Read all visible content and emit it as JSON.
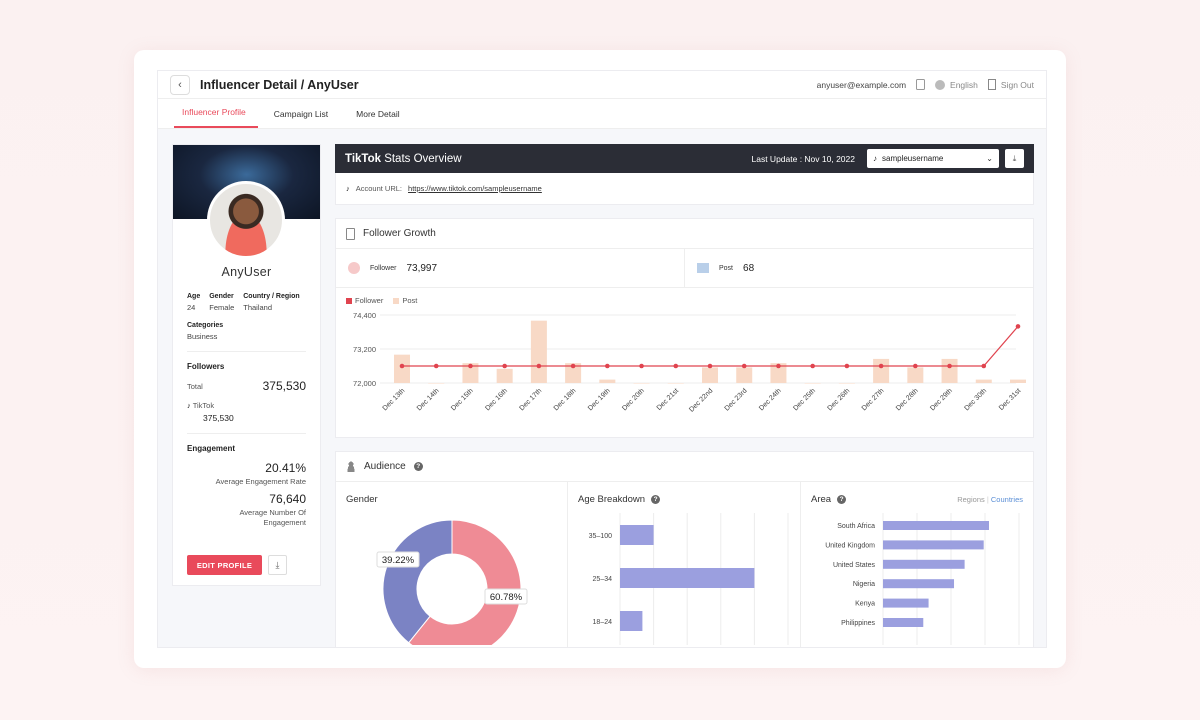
{
  "header": {
    "back_icon": "chevron-left-icon",
    "title": "Influencer Detail / AnyUser",
    "email": "anyuser@example.com",
    "language": "English",
    "sign_out": "Sign Out"
  },
  "tabs": [
    {
      "label": "Influencer Profile",
      "active": true
    },
    {
      "label": "Campaign List",
      "active": false
    },
    {
      "label": "More Detail",
      "active": false
    }
  ],
  "profile": {
    "name": "AnyUser",
    "age_label": "Age",
    "age": "24",
    "gender_label": "Gender",
    "gender": "Female",
    "country_label": "Country / Region",
    "country": "Thailand",
    "categories_label": "Categories",
    "categories": "Business",
    "followers_label": "Followers",
    "total_label": "Total",
    "total": "375,530",
    "tiktok_label": "TikTok",
    "tiktok_followers": "375,530",
    "engagement_label": "Engagement",
    "eng_rate": "20.41%",
    "eng_rate_label": "Average Engagement Rate",
    "eng_count": "76,640",
    "eng_count_label": "Average Number Of Engagement",
    "edit_button": "EDIT PROFILE"
  },
  "stats": {
    "brand": "TikTok",
    "title_rest": " Stats Overview",
    "last_update": "Last Update : Nov 10, 2022",
    "account": "sampleusername",
    "url_label": "Account URL:",
    "url": "https://www.tiktok.com/sampleusername"
  },
  "follower_growth": {
    "title": "Follower Growth",
    "follower_label": "Follower",
    "follower_value": "73,997",
    "post_label": "Post",
    "post_value": "68",
    "legend_follower": "Follower",
    "legend_post": "Post"
  },
  "audience": {
    "title": "Audience",
    "gender_title": "Gender",
    "age_title": "Age Breakdown",
    "area_title": "Area",
    "regions": "Regions",
    "countries": "Countries"
  },
  "colors": {
    "accent": "#e94a5b",
    "post_bar": "#f8d9c6",
    "follower_line": "#e0444f",
    "gender_blue": "#7b83c4",
    "gender_pink": "#ef8b95",
    "audience_bar": "#9b9fdf"
  },
  "chart_data": [
    {
      "type": "bar+line",
      "categories": [
        "Dec 13th",
        "Dec 14th",
        "Dec 15th",
        "Dec 16th",
        "Dec 17th",
        "Dec 18th",
        "Dec 19th",
        "Dec 20th",
        "Dec 21st",
        "Dec 22nd",
        "Dec 23rd",
        "Dec 24th",
        "Dec 25th",
        "Dec 26th",
        "Dec 27th",
        "Dec 28th",
        "Dec 29th",
        "Dec 30th",
        "Dec 31st"
      ],
      "ylim": [
        72000,
        74400
      ],
      "yticks": [
        "74,400",
        "73,200",
        "72,000"
      ],
      "series": [
        {
          "name": "Follower",
          "kind": "line",
          "values": [
            72600,
            72600,
            72600,
            72600,
            72600,
            72600,
            72600,
            72600,
            72600,
            72600,
            72600,
            72600,
            72600,
            72600,
            72600,
            72600,
            72600,
            72600,
            73997
          ]
        },
        {
          "name": "Post",
          "kind": "bar",
          "values": [
            73000,
            72000,
            72700,
            72500,
            74200,
            72700,
            72120,
            72000,
            72000,
            72550,
            72550,
            72700,
            72000,
            72000,
            72850,
            72550,
            72850,
            72120,
            72120
          ]
        }
      ]
    },
    {
      "type": "pie",
      "labels": [
        "39.22%",
        "60.78%"
      ],
      "values": [
        39.22,
        60.78
      ]
    },
    {
      "type": "bar",
      "orientation": "horizontal",
      "categories": [
        "35–100",
        "25–34",
        "18–24"
      ],
      "values": [
        12,
        48,
        8
      ]
    },
    {
      "type": "bar",
      "orientation": "horizontal",
      "categories": [
        "South Africa",
        "United Kingdom",
        "United States",
        "Nigeria",
        "Kenya",
        "Philippines"
      ],
      "values": [
        100,
        95,
        77,
        67,
        43,
        38
      ]
    }
  ]
}
